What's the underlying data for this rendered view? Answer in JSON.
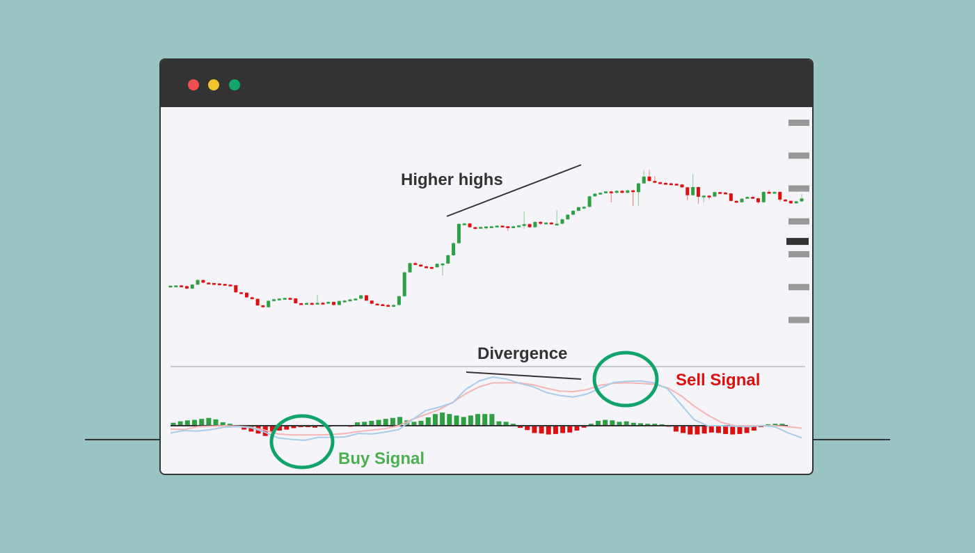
{
  "window": {
    "controls": [
      "close-dot",
      "minimize-dot",
      "maximize-dot"
    ],
    "control_colors": [
      "#ef4f4f",
      "#f4c430",
      "#11a66b"
    ]
  },
  "colors": {
    "bullish": "#2ea043",
    "bearish": "#dd1010",
    "macd_line": "#a7cde9",
    "signal_line": "#f6b4b4",
    "circle": "#10a36b",
    "frame": "#333333",
    "background": "#9ac4c3"
  },
  "annotations": {
    "higher_highs": "Higher highs",
    "divergence": "Divergence",
    "sell_signal": "Sell Signal",
    "buy_signal": "Buy Signal"
  },
  "chart_data": [
    {
      "type": "candlestick",
      "title": "",
      "xlabel": "",
      "ylabel": "",
      "ylim": [
        0,
        100
      ],
      "y_tick_labels": [],
      "current_price_marker": 46,
      "grid": false,
      "candles": [
        {
          "o": 25.5,
          "c": 25.8,
          "h": 26.0,
          "l": 25.2
        },
        {
          "o": 25.6,
          "c": 25.9,
          "h": 26.1,
          "l": 25.3
        },
        {
          "o": 25.9,
          "c": 25.6,
          "h": 26.1,
          "l": 25.3
        },
        {
          "o": 25.6,
          "c": 24.5,
          "h": 25.8,
          "l": 24.2
        },
        {
          "o": 24.5,
          "c": 26.3,
          "h": 26.5,
          "l": 24.3
        },
        {
          "o": 26.3,
          "c": 28.4,
          "h": 28.7,
          "l": 26.1
        },
        {
          "o": 28.4,
          "c": 27.2,
          "h": 28.6,
          "l": 26.9
        },
        {
          "o": 27.2,
          "c": 27.0,
          "h": 27.4,
          "l": 26.7
        },
        {
          "o": 27.0,
          "c": 26.8,
          "h": 27.2,
          "l": 26.5
        },
        {
          "o": 26.8,
          "c": 26.6,
          "h": 27.0,
          "l": 26.3
        },
        {
          "o": 26.6,
          "c": 26.3,
          "h": 26.8,
          "l": 26.0
        },
        {
          "o": 26.3,
          "c": 26.0,
          "h": 26.5,
          "l": 25.8
        },
        {
          "o": 26.0,
          "c": 22.8,
          "h": 26.2,
          "l": 22.5
        },
        {
          "o": 22.8,
          "c": 22.6,
          "h": 23.0,
          "l": 22.3
        },
        {
          "o": 22.6,
          "c": 20.5,
          "h": 22.8,
          "l": 20.2
        },
        {
          "o": 20.5,
          "c": 19.8,
          "h": 20.8,
          "l": 19.5
        },
        {
          "o": 19.8,
          "c": 16.8,
          "h": 20.0,
          "l": 16.5
        },
        {
          "o": 16.8,
          "c": 16.0,
          "h": 17.1,
          "l": 15.7
        },
        {
          "o": 16.0,
          "c": 18.9,
          "h": 19.2,
          "l": 15.8
        },
        {
          "o": 18.9,
          "c": 19.6,
          "h": 19.9,
          "l": 18.6
        },
        {
          "o": 19.6,
          "c": 19.9,
          "h": 20.2,
          "l": 19.3
        },
        {
          "o": 19.9,
          "c": 20.2,
          "h": 20.4,
          "l": 19.6
        },
        {
          "o": 20.2,
          "c": 20.0,
          "h": 20.4,
          "l": 19.7
        },
        {
          "o": 20.0,
          "c": 17.8,
          "h": 20.2,
          "l": 17.5
        },
        {
          "o": 17.8,
          "c": 17.7,
          "h": 18.0,
          "l": 17.2
        },
        {
          "o": 17.7,
          "c": 17.9,
          "h": 18.2,
          "l": 17.3
        },
        {
          "o": 17.9,
          "c": 17.6,
          "h": 18.1,
          "l": 17.0
        },
        {
          "o": 17.6,
          "c": 18.0,
          "h": 21.6,
          "l": 17.2
        },
        {
          "o": 18.0,
          "c": 17.9,
          "h": 18.4,
          "l": 17.5
        },
        {
          "o": 17.9,
          "c": 18.4,
          "h": 18.8,
          "l": 17.6
        },
        {
          "o": 18.4,
          "c": 17.0,
          "h": 18.6,
          "l": 16.7
        },
        {
          "o": 17.0,
          "c": 18.8,
          "h": 19.1,
          "l": 16.8
        },
        {
          "o": 18.8,
          "c": 19.0,
          "h": 19.3,
          "l": 18.5
        },
        {
          "o": 19.0,
          "c": 19.5,
          "h": 19.8,
          "l": 18.7
        },
        {
          "o": 19.5,
          "c": 19.9,
          "h": 20.2,
          "l": 19.2
        },
        {
          "o": 19.9,
          "c": 21.4,
          "h": 21.7,
          "l": 19.6
        },
        {
          "o": 21.4,
          "c": 19.0,
          "h": 21.6,
          "l": 18.7
        },
        {
          "o": 19.0,
          "c": 17.6,
          "h": 19.2,
          "l": 17.3
        },
        {
          "o": 17.6,
          "c": 17.3,
          "h": 17.9,
          "l": 17.0
        },
        {
          "o": 17.3,
          "c": 17.0,
          "h": 17.6,
          "l": 16.7
        },
        {
          "o": 17.0,
          "c": 16.7,
          "h": 17.3,
          "l": 16.3
        },
        {
          "o": 16.7,
          "c": 17.0,
          "h": 17.3,
          "l": 15.9
        },
        {
          "o": 17.0,
          "c": 21.0,
          "h": 21.3,
          "l": 16.7
        },
        {
          "o": 21.0,
          "c": 31.9,
          "h": 32.2,
          "l": 20.7
        },
        {
          "o": 31.9,
          "c": 36.1,
          "h": 36.4,
          "l": 31.6
        },
        {
          "o": 36.1,
          "c": 35.4,
          "h": 36.7,
          "l": 35.1
        },
        {
          "o": 35.4,
          "c": 34.6,
          "h": 35.7,
          "l": 34.3
        },
        {
          "o": 34.6,
          "c": 34.3,
          "h": 34.9,
          "l": 34.0
        },
        {
          "o": 34.3,
          "c": 34.2,
          "h": 34.6,
          "l": 33.9
        },
        {
          "o": 34.2,
          "c": 35.8,
          "h": 36.1,
          "l": 33.9
        },
        {
          "o": 35.8,
          "c": 35.9,
          "h": 36.2,
          "l": 30.4
        },
        {
          "o": 35.9,
          "c": 39.7,
          "h": 40.0,
          "l": 35.6
        },
        {
          "o": 39.7,
          "c": 45.2,
          "h": 45.5,
          "l": 39.4
        },
        {
          "o": 45.2,
          "c": 54.0,
          "h": 54.3,
          "l": 44.9
        },
        {
          "o": 54.0,
          "c": 54.2,
          "h": 54.5,
          "l": 53.7
        },
        {
          "o": 54.2,
          "c": 52.5,
          "h": 54.5,
          "l": 52.2
        },
        {
          "o": 52.5,
          "c": 52.2,
          "h": 52.8,
          "l": 51.9
        },
        {
          "o": 52.2,
          "c": 52.6,
          "h": 52.9,
          "l": 51.9
        },
        {
          "o": 52.6,
          "c": 52.8,
          "h": 53.0,
          "l": 51.5
        },
        {
          "o": 52.8,
          "c": 52.9,
          "h": 53.1,
          "l": 52.1
        },
        {
          "o": 52.9,
          "c": 53.2,
          "h": 53.4,
          "l": 52.5
        },
        {
          "o": 53.2,
          "c": 52.9,
          "h": 53.4,
          "l": 52.3
        },
        {
          "o": 52.9,
          "c": 52.7,
          "h": 53.1,
          "l": 50.8
        },
        {
          "o": 52.7,
          "c": 52.9,
          "h": 53.1,
          "l": 52.2
        },
        {
          "o": 52.9,
          "c": 53.3,
          "h": 53.6,
          "l": 52.4
        },
        {
          "o": 53.3,
          "c": 53.9,
          "h": 59.6,
          "l": 51.8
        },
        {
          "o": 53.9,
          "c": 52.5,
          "h": 54.2,
          "l": 52.2
        },
        {
          "o": 52.5,
          "c": 54.9,
          "h": 55.2,
          "l": 52.2
        },
        {
          "o": 54.9,
          "c": 54.1,
          "h": 55.2,
          "l": 53.6
        },
        {
          "o": 54.1,
          "c": 54.6,
          "h": 54.9,
          "l": 53.8
        },
        {
          "o": 54.6,
          "c": 54.0,
          "h": 54.9,
          "l": 53.7
        },
        {
          "o": 54.0,
          "c": 54.1,
          "h": 60.3,
          "l": 53.6
        },
        {
          "o": 54.1,
          "c": 56.1,
          "h": 56.4,
          "l": 53.8
        },
        {
          "o": 56.1,
          "c": 58.2,
          "h": 58.5,
          "l": 55.8
        },
        {
          "o": 58.2,
          "c": 60.0,
          "h": 60.3,
          "l": 57.9
        },
        {
          "o": 60.0,
          "c": 61.6,
          "h": 61.9,
          "l": 59.7
        },
        {
          "o": 61.6,
          "c": 61.8,
          "h": 62.1,
          "l": 61.3
        },
        {
          "o": 61.8,
          "c": 66.6,
          "h": 66.9,
          "l": 61.5
        },
        {
          "o": 66.6,
          "c": 67.8,
          "h": 68.1,
          "l": 66.3
        },
        {
          "o": 67.8,
          "c": 68.2,
          "h": 68.5,
          "l": 67.5
        },
        {
          "o": 68.2,
          "c": 68.8,
          "h": 69.1,
          "l": 67.9
        },
        {
          "o": 68.8,
          "c": 68.2,
          "h": 69.1,
          "l": 63.8
        },
        {
          "o": 68.2,
          "c": 69.1,
          "h": 69.4,
          "l": 67.9
        },
        {
          "o": 69.1,
          "c": 68.2,
          "h": 69.4,
          "l": 67.9
        },
        {
          "o": 68.2,
          "c": 69.3,
          "h": 69.6,
          "l": 67.9
        },
        {
          "o": 69.3,
          "c": 68.5,
          "h": 69.6,
          "l": 62.1
        },
        {
          "o": 68.5,
          "c": 72.5,
          "h": 72.8,
          "l": 62.1
        },
        {
          "o": 72.5,
          "c": 75.6,
          "h": 78.5,
          "l": 72.2
        },
        {
          "o": 75.6,
          "c": 73.6,
          "h": 78.6,
          "l": 73.3
        },
        {
          "o": 73.6,
          "c": 73.0,
          "h": 75.9,
          "l": 72.7
        },
        {
          "o": 73.0,
          "c": 72.7,
          "h": 73.3,
          "l": 72.4
        },
        {
          "o": 72.7,
          "c": 72.5,
          "h": 73.0,
          "l": 72.2
        },
        {
          "o": 72.5,
          "c": 72.3,
          "h": 72.8,
          "l": 72.0
        },
        {
          "o": 72.3,
          "c": 72.0,
          "h": 72.6,
          "l": 71.7
        },
        {
          "o": 72.0,
          "c": 70.7,
          "h": 72.3,
          "l": 70.4
        },
        {
          "o": 70.7,
          "c": 67.1,
          "h": 71.0,
          "l": 64.8
        },
        {
          "o": 67.1,
          "c": 70.8,
          "h": 76.6,
          "l": 66.8
        },
        {
          "o": 70.8,
          "c": 66.4,
          "h": 71.1,
          "l": 63.1
        },
        {
          "o": 66.4,
          "c": 66.9,
          "h": 67.2,
          "l": 63.8
        },
        {
          "o": 66.9,
          "c": 66.5,
          "h": 67.2,
          "l": 65.2
        },
        {
          "o": 66.5,
          "c": 68.5,
          "h": 68.8,
          "l": 66.2
        },
        {
          "o": 68.5,
          "c": 68.3,
          "h": 68.6,
          "l": 68.0
        },
        {
          "o": 68.3,
          "c": 67.9,
          "h": 68.6,
          "l": 67.6
        },
        {
          "o": 67.9,
          "c": 64.5,
          "h": 68.2,
          "l": 64.2
        },
        {
          "o": 64.5,
          "c": 63.9,
          "h": 64.8,
          "l": 63.6
        },
        {
          "o": 63.9,
          "c": 65.5,
          "h": 65.8,
          "l": 63.6
        },
        {
          "o": 65.5,
          "c": 66.3,
          "h": 66.6,
          "l": 66.0
        },
        {
          "o": 66.3,
          "c": 65.7,
          "h": 66.6,
          "l": 65.4
        },
        {
          "o": 65.7,
          "c": 63.9,
          "h": 66.0,
          "l": 63.2
        },
        {
          "o": 63.9,
          "c": 68.6,
          "h": 68.9,
          "l": 63.6
        },
        {
          "o": 68.6,
          "c": 68.4,
          "h": 69.5,
          "l": 68.1
        },
        {
          "o": 68.4,
          "c": 68.6,
          "h": 68.9,
          "l": 68.1
        },
        {
          "o": 68.6,
          "c": 65.1,
          "h": 68.9,
          "l": 64.2
        },
        {
          "o": 65.1,
          "c": 64.5,
          "h": 65.4,
          "l": 64.2
        },
        {
          "o": 64.5,
          "c": 63.4,
          "h": 64.8,
          "l": 63.1
        },
        {
          "o": 63.4,
          "c": 64.3,
          "h": 64.6,
          "l": 63.1
        },
        {
          "o": 64.3,
          "c": 65.6,
          "h": 67.6,
          "l": 64.0
        }
      ]
    },
    {
      "type": "macd",
      "title": "",
      "ylim": [
        -10,
        10
      ],
      "zero_line": 0,
      "histogram": [
        1.2,
        1.8,
        2.2,
        2.4,
        2.8,
        3.2,
        2.6,
        1.4,
        0.8,
        -0.3,
        -1.6,
        -2.4,
        -3.2,
        -4.2,
        -2.8,
        -2.0,
        -1.6,
        -1.0,
        -0.6,
        -0.6,
        -0.8,
        -0.4,
        -0.4,
        -0.2,
        -0.2,
        -0.4,
        1.4,
        1.6,
        2.0,
        2.4,
        2.8,
        3.2,
        3.6,
        2.2,
        1.6,
        2.0,
        3.4,
        4.8,
        5.4,
        4.8,
        4.2,
        3.6,
        4.2,
        4.8,
        4.8,
        4.8,
        1.8,
        1.6,
        0.8,
        -0.9,
        -1.8,
        -3.0,
        -3.2,
        -3.6,
        -3.4,
        -3.0,
        -2.8,
        -2.0,
        -0.8,
        0.8,
        2.0,
        2.4,
        2.2,
        1.6,
        1.8,
        1.2,
        1.0,
        0.8,
        0.8,
        0.6,
        -0.4,
        -2.4,
        -3.0,
        -3.6,
        -3.6,
        -3.2,
        -2.8,
        -3.0,
        -3.4,
        -3.6,
        -3.4,
        -3.0,
        -2.0,
        -0.6,
        0.6,
        0.8,
        0.8
      ],
      "macd_line": [
        -3.0,
        -2.0,
        -2.2,
        -1.6,
        -0.6,
        -0.4,
        -0.8,
        -2.6,
        -5.0,
        -5.6,
        -6.0,
        -4.8,
        -4.8,
        -4.6,
        -3.2,
        -3.4,
        -2.6,
        -1.6,
        2.4,
        6.2,
        7.6,
        9.4,
        15.0,
        18.4,
        20.0,
        19.2,
        17.4,
        16.0,
        13.6,
        12.4,
        11.8,
        13.0,
        15.4,
        17.8,
        18.2,
        18.4,
        17.6,
        15.2,
        8.8,
        2.4,
        0.0,
        0.0,
        -0.2,
        -0.4,
        0.0,
        -0.4,
        -3.0,
        -5.0
      ],
      "signal_line": [
        -1.4,
        -1.6,
        -0.4,
        -0.2,
        0.0,
        -0.2,
        -0.6,
        -1.8,
        -3.4,
        -3.8,
        -3.8,
        -3.8,
        -3.6,
        -3.2,
        -2.4,
        -1.8,
        -1.2,
        0.0,
        2.6,
        4.6,
        6.6,
        9.6,
        13.2,
        16.0,
        17.6,
        17.6,
        17.6,
        16.8,
        15.4,
        14.2,
        14.0,
        14.8,
        16.6,
        17.4,
        17.6,
        17.4,
        17.0,
        15.6,
        12.4,
        8.0,
        4.4,
        1.4,
        0.0,
        0.0,
        0.0,
        0.0,
        -0.4,
        -1.0
      ],
      "signals": [
        {
          "name": "buy",
          "label_key": "buy_signal",
          "index": 10
        },
        {
          "name": "sell",
          "label_key": "sell_signal",
          "index": 35
        }
      ]
    }
  ]
}
